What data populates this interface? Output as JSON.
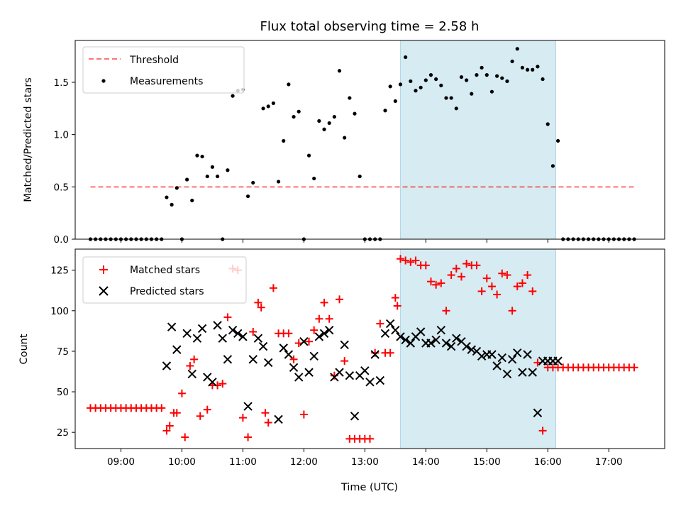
{
  "chart_data": [
    {
      "type": "scatter",
      "title": "Flux total observing time = 2.58 h",
      "xlabel": "",
      "ylabel": "Matched/Predicted stars",
      "xlim": [
        "08:15",
        "17:55"
      ],
      "ylim": [
        0,
        1.9
      ],
      "yticks": [
        "0.0",
        "0.5",
        "1.0",
        "1.5"
      ],
      "grid": false,
      "legend": "top-left",
      "shaded_interval": [
        "13:35",
        "16:08"
      ],
      "shaded_color": "#add8e6",
      "series": [
        {
          "name": "Threshold",
          "kind": "dashed-line",
          "color": "#ff0000",
          "x": [
            "08:30",
            "17:25"
          ],
          "y": [
            0.5,
            0.5
          ]
        },
        {
          "name": "Measurements",
          "kind": "dots",
          "color": "#000000",
          "x": [
            "08:30",
            "08:35",
            "08:40",
            "08:45",
            "08:50",
            "08:55",
            "09:00",
            "09:05",
            "09:10",
            "09:15",
            "09:20",
            "09:25",
            "09:30",
            "09:35",
            "09:40",
            "09:45",
            "09:50",
            "09:55",
            "10:00",
            "10:05",
            "10:10",
            "10:15",
            "10:20",
            "10:25",
            "10:30",
            "10:35",
            "10:40",
            "10:45",
            "10:50",
            "10:55",
            "11:00",
            "11:05",
            "11:10",
            "11:20",
            "11:25",
            "11:30",
            "11:35",
            "11:40",
            "11:45",
            "11:50",
            "11:55",
            "12:00",
            "12:05",
            "12:10",
            "12:15",
            "12:20",
            "12:25",
            "12:30",
            "12:35",
            "12:40",
            "12:45",
            "12:50",
            "12:55",
            "13:00",
            "13:05",
            "13:10",
            "13:15",
            "13:20",
            "13:25",
            "13:30",
            "13:35",
            "13:40",
            "13:45",
            "13:50",
            "13:55",
            "14:00",
            "14:05",
            "14:10",
            "14:15",
            "14:20",
            "14:25",
            "14:30",
            "14:35",
            "14:40",
            "14:45",
            "14:50",
            "14:55",
            "15:00",
            "15:05",
            "15:10",
            "15:15",
            "15:20",
            "15:25",
            "15:30",
            "15:35",
            "15:40",
            "15:45",
            "15:50",
            "15:55",
            "16:00",
            "16:05",
            "16:10",
            "16:15",
            "16:20",
            "16:25",
            "16:30",
            "16:35",
            "16:40",
            "16:45",
            "16:50",
            "16:55",
            "17:00",
            "17:05",
            "17:10",
            "17:15",
            "17:20",
            "17:25"
          ],
          "y": [
            0,
            0,
            0,
            0,
            0,
            0,
            0,
            0,
            0,
            0,
            0,
            0,
            0,
            0,
            0,
            0.4,
            0.33,
            0.49,
            0,
            0.57,
            0.37,
            0.8,
            0.79,
            0.6,
            0.69,
            0.6,
            0,
            0.66,
            1.37,
            1.42,
            1.43,
            0.41,
            0.54,
            1.25,
            1.27,
            1.3,
            0.55,
            0.94,
            1.48,
            1.17,
            1.22,
            0,
            0.8,
            0.58,
            1.13,
            1.05,
            1.11,
            1.17,
            1.61,
            0.97,
            1.35,
            1.2,
            0.6,
            0,
            0,
            0,
            0,
            1.23,
            1.46,
            1.32,
            1.48,
            1.74,
            1.51,
            1.42,
            1.45,
            1.52,
            1.57,
            1.53,
            1.47,
            1.35,
            1.35,
            1.25,
            1.55,
            1.52,
            1.39,
            1.57,
            1.64,
            1.57,
            1.41,
            1.56,
            1.54,
            1.51,
            1.7,
            1.82,
            1.64,
            1.62,
            1.62,
            1.65,
            1.53,
            1.1,
            0.7,
            0.94,
            0,
            0,
            0,
            0,
            0,
            0,
            0,
            0,
            0,
            0,
            0,
            0,
            0,
            0,
            0
          ]
        }
      ]
    },
    {
      "type": "scatter",
      "title": "",
      "xlabel": "Time (UTC)",
      "ylabel": "Count",
      "xlim": [
        "08:15",
        "17:55"
      ],
      "ylim": [
        15,
        138
      ],
      "yticks": [
        "25",
        "50",
        "75",
        "100",
        "125"
      ],
      "xticks": [
        "09:00",
        "10:00",
        "11:00",
        "12:00",
        "13:00",
        "14:00",
        "15:00",
        "16:00",
        "17:00"
      ],
      "grid": false,
      "legend": "top-left",
      "shaded_interval": [
        "13:35",
        "16:08"
      ],
      "shaded_color": "#add8e6",
      "series": [
        {
          "name": "Matched stars",
          "marker": "plus",
          "color": "#ff0000",
          "x": [
            "08:30",
            "08:35",
            "08:40",
            "08:45",
            "08:50",
            "08:55",
            "09:00",
            "09:05",
            "09:10",
            "09:15",
            "09:20",
            "09:25",
            "09:30",
            "09:35",
            "09:40",
            "09:45",
            "09:48",
            "09:52",
            "09:55",
            "10:00",
            "10:03",
            "10:08",
            "10:12",
            "10:18",
            "10:25",
            "10:30",
            "10:35",
            "10:40",
            "10:45",
            "10:50",
            "10:55",
            "11:00",
            "11:05",
            "11:10",
            "11:15",
            "11:18",
            "11:22",
            "11:25",
            "11:30",
            "11:35",
            "11:40",
            "11:45",
            "11:50",
            "11:55",
            "12:00",
            "12:05",
            "12:10",
            "12:15",
            "12:20",
            "12:25",
            "12:30",
            "12:35",
            "12:40",
            "12:45",
            "12:50",
            "12:55",
            "13:00",
            "13:05",
            "13:10",
            "13:15",
            "13:20",
            "13:25",
            "13:30",
            "13:32",
            "13:35",
            "13:40",
            "13:45",
            "13:50",
            "13:55",
            "14:00",
            "14:05",
            "14:10",
            "14:15",
            "14:20",
            "14:25",
            "14:30",
            "14:35",
            "14:40",
            "14:45",
            "14:50",
            "14:55",
            "15:00",
            "15:05",
            "15:10",
            "15:15",
            "15:20",
            "15:25",
            "15:30",
            "15:35",
            "15:40",
            "15:45",
            "15:50",
            "15:55",
            "16:00",
            "16:05",
            "16:10",
            "16:15",
            "16:20",
            "16:25",
            "16:30",
            "16:35",
            "16:40",
            "16:45",
            "16:50",
            "16:55",
            "17:00",
            "17:05",
            "17:10",
            "17:15",
            "17:20",
            "17:25"
          ],
          "y": [
            40,
            40,
            40,
            40,
            40,
            40,
            40,
            40,
            40,
            40,
            40,
            40,
            40,
            40,
            40,
            26,
            29,
            37,
            37,
            49,
            22,
            66,
            70,
            35,
            39,
            54,
            54,
            55,
            96,
            126,
            125,
            34,
            22,
            87,
            105,
            102,
            37,
            31,
            114,
            86,
            86,
            86,
            70,
            80,
            36,
            81,
            88,
            95,
            105,
            95,
            60,
            107,
            69,
            21,
            21,
            21,
            21,
            21,
            74,
            92,
            74,
            74,
            108,
            103,
            132,
            131,
            130,
            131,
            128,
            128,
            118,
            116,
            117,
            100,
            122,
            126,
            121,
            129,
            128,
            128,
            112,
            120,
            115,
            110,
            123,
            122,
            100,
            115,
            117,
            122,
            112,
            68,
            26,
            65,
            65,
            65,
            65,
            65,
            65,
            65,
            65,
            65,
            65,
            65,
            65,
            65,
            65,
            65,
            65,
            65,
            65
          ]
        },
        {
          "name": "Predicted stars",
          "marker": "x",
          "color": "#000000",
          "x": [
            "09:45",
            "09:50",
            "09:55",
            "10:05",
            "10:10",
            "10:15",
            "10:20",
            "10:25",
            "10:30",
            "10:35",
            "10:40",
            "10:45",
            "10:50",
            "10:55",
            "11:00",
            "11:05",
            "11:10",
            "11:15",
            "11:20",
            "11:25",
            "11:35",
            "11:40",
            "11:45",
            "11:50",
            "11:55",
            "12:00",
            "12:05",
            "12:10",
            "12:15",
            "12:20",
            "12:25",
            "12:30",
            "12:35",
            "12:40",
            "12:45",
            "12:50",
            "12:55",
            "13:00",
            "13:05",
            "13:10",
            "13:15",
            "13:20",
            "13:25",
            "13:30",
            "13:35",
            "13:40",
            "13:45",
            "13:50",
            "13:55",
            "14:00",
            "14:05",
            "14:10",
            "14:15",
            "14:20",
            "14:25",
            "14:30",
            "14:35",
            "14:40",
            "14:45",
            "14:50",
            "14:55",
            "15:00",
            "15:05",
            "15:10",
            "15:15",
            "15:20",
            "15:25",
            "15:30",
            "15:35",
            "15:40",
            "15:45",
            "15:50",
            "15:55",
            "16:00",
            "16:05",
            "16:10"
          ],
          "y": [
            66,
            90,
            76,
            86,
            61,
            83,
            89,
            59,
            56,
            91,
            83,
            70,
            88,
            86,
            84,
            41,
            70,
            83,
            78,
            68,
            33,
            77,
            73,
            65,
            59,
            81,
            62,
            72,
            84,
            86,
            88,
            59,
            62,
            79,
            60,
            35,
            60,
            63,
            56,
            73,
            57,
            86,
            92,
            88,
            84,
            82,
            80,
            84,
            87,
            80,
            80,
            82,
            88,
            80,
            78,
            83,
            81,
            78,
            76,
            75,
            72,
            73,
            73,
            66,
            71,
            61,
            70,
            74,
            62,
            73,
            62,
            37,
            69,
            69,
            69,
            69
          ]
        }
      ]
    }
  ]
}
